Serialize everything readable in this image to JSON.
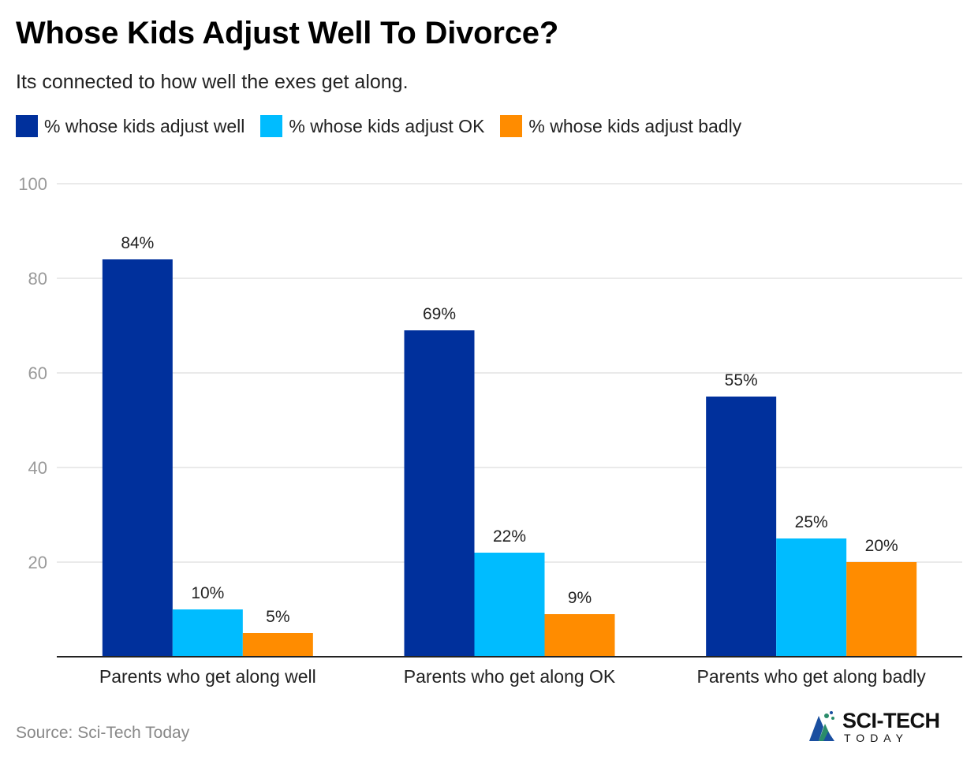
{
  "title": "Whose Kids Adjust Well To Divorce?",
  "subtitle": "Its connected to how well the exes get along.",
  "source": "Source: Sci-Tech Today",
  "logo": {
    "main": "SCI-TECH",
    "sub": "TODAY"
  },
  "chart_data": {
    "type": "bar",
    "title": "Whose Kids Adjust Well To Divorce?",
    "subtitle": "Its connected to how well the exes get along.",
    "categories": [
      "Parents who get along well",
      "Parents who get along OK",
      "Parents who get along badly"
    ],
    "series": [
      {
        "name": "% whose kids adjust well",
        "color": "#00309c",
        "values": [
          84,
          69,
          55
        ]
      },
      {
        "name": "% whose kids adjust OK",
        "color": "#00bcff",
        "values": [
          10,
          22,
          25
        ]
      },
      {
        "name": "% whose kids adjust badly",
        "color": "#ff8c00",
        "values": [
          5,
          9,
          20
        ]
      }
    ],
    "value_suffix": "%",
    "ylim": [
      0,
      100
    ],
    "yticks": [
      20,
      40,
      60,
      80,
      100
    ],
    "xlabel": "",
    "ylabel": "",
    "grid": true,
    "legend_position": "top-left"
  }
}
